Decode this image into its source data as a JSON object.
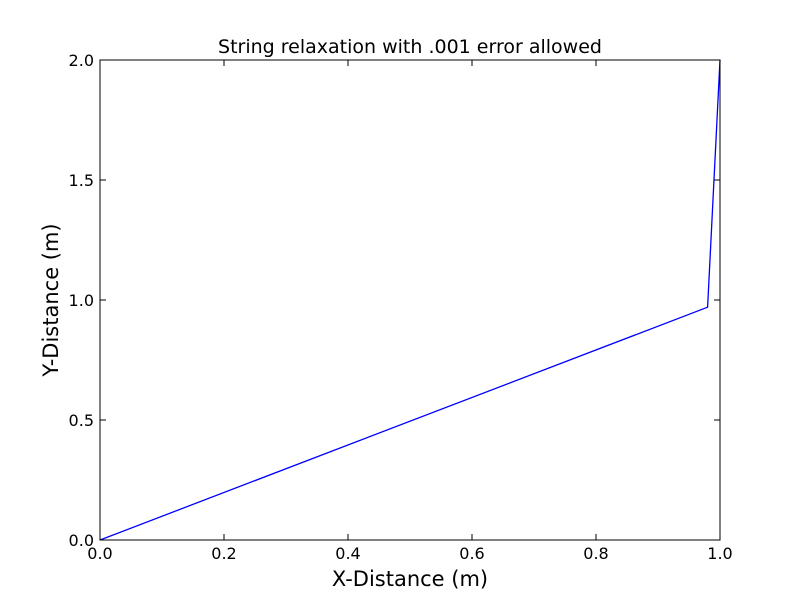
{
  "chart_data": {
    "type": "line",
    "title": "String relaxation with .001 error allowed",
    "xlabel": "X-Distance (m)",
    "ylabel": "Y-Distance (m)",
    "xlim": [
      0.0,
      1.0
    ],
    "ylim": [
      0.0,
      2.0
    ],
    "x_ticks": [
      0.0,
      0.2,
      0.4,
      0.6,
      0.8,
      1.0
    ],
    "x_tick_labels": [
      "0.0",
      "0.2",
      "0.4",
      "0.6",
      "0.8",
      "1.0"
    ],
    "y_ticks": [
      0.0,
      0.5,
      1.0,
      1.5,
      2.0
    ],
    "y_tick_labels": [
      "0.0",
      "0.5",
      "1.0",
      "1.5",
      "2.0"
    ],
    "grid": false,
    "legend": "none",
    "series": [
      {
        "color": "#0000ff",
        "x": [
          0.0,
          0.98,
          1.0
        ],
        "y": [
          0.0,
          0.97,
          2.0
        ]
      }
    ]
  }
}
